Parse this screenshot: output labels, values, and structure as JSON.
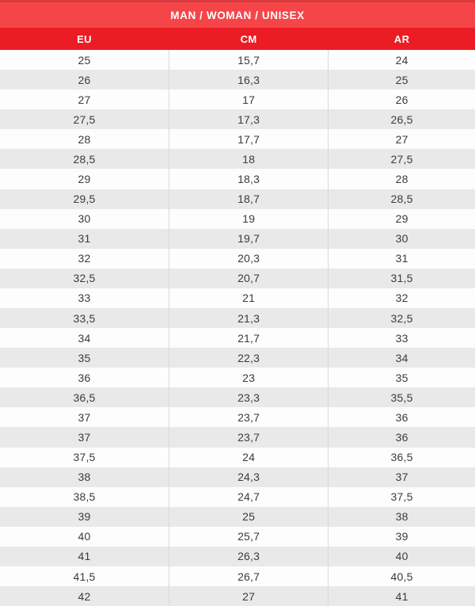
{
  "banner": {
    "title": "MAN / WOMAN / UNISEX"
  },
  "colors": {
    "banner_red": "#f54549",
    "banner_top_edge": "#d8393d",
    "header_red": "#ec1c24",
    "row_white": "#fdfdfd",
    "row_gray": "#e9e9e9",
    "divider_gray": "#d9d9d9",
    "text_dark": "#3b3b3b",
    "text_on_red": "#ffffff"
  },
  "chart_data": {
    "type": "table",
    "title": "MAN / WOMAN / UNISEX",
    "columns": [
      {
        "key": "eu",
        "label": "EU"
      },
      {
        "key": "cm",
        "label": "CM"
      },
      {
        "key": "ar",
        "label": "AR"
      }
    ],
    "rows": [
      [
        "25",
        "15,7",
        "24"
      ],
      [
        "26",
        "16,3",
        "25"
      ],
      [
        "27",
        "17",
        "26"
      ],
      [
        "27,5",
        "17,3",
        "26,5"
      ],
      [
        "28",
        "17,7",
        "27"
      ],
      [
        "28,5",
        "18",
        "27,5"
      ],
      [
        "29",
        "18,3",
        "28"
      ],
      [
        "29,5",
        "18,7",
        "28,5"
      ],
      [
        "30",
        "19",
        "29"
      ],
      [
        "31",
        "19,7",
        "30"
      ],
      [
        "32",
        "20,3",
        "31"
      ],
      [
        "32,5",
        "20,7",
        "31,5"
      ],
      [
        "33",
        "21",
        "32"
      ],
      [
        "33,5",
        "21,3",
        "32,5"
      ],
      [
        "34",
        "21,7",
        "33"
      ],
      [
        "35",
        "22,3",
        "34"
      ],
      [
        "36",
        "23",
        "35"
      ],
      [
        "36,5",
        "23,3",
        "35,5"
      ],
      [
        "37",
        "23,7",
        "36"
      ],
      [
        "37",
        "23,7",
        "36"
      ],
      [
        "37,5",
        "24",
        "36,5"
      ],
      [
        "38",
        "24,3",
        "37"
      ],
      [
        "38,5",
        "24,7",
        "37,5"
      ],
      [
        "39",
        "25",
        "38"
      ],
      [
        "40",
        "25,7",
        "39"
      ],
      [
        "41",
        "26,3",
        "40"
      ],
      [
        "41,5",
        "26,7",
        "40,5"
      ],
      [
        "42",
        "27",
        "41"
      ]
    ]
  }
}
